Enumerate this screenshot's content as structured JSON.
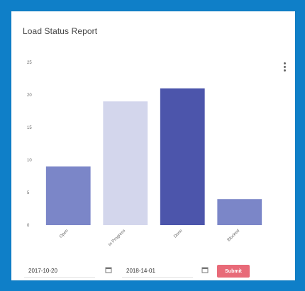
{
  "card": {
    "title": "Load Status Report"
  },
  "chart_data": {
    "type": "bar",
    "title": "",
    "xlabel": "",
    "ylabel": "",
    "ylim": [
      0,
      25
    ],
    "yticks": [
      0,
      5,
      10,
      15,
      20,
      25
    ],
    "categories": [
      "Open",
      "In Progress",
      "Done",
      "Blocked"
    ],
    "values": [
      9,
      19,
      21,
      4
    ],
    "colors": [
      "#7b86c8",
      "#d3d6ec",
      "#4c55ab",
      "#7b86c8"
    ],
    "grid": false,
    "legend": "none"
  },
  "filters": {
    "from_date": "2017-10-20",
    "to_date": "2018-14-01",
    "submit_label": "Submit"
  },
  "icons": {
    "calendar": "calendar-icon",
    "menu": "more-vert-icon"
  }
}
